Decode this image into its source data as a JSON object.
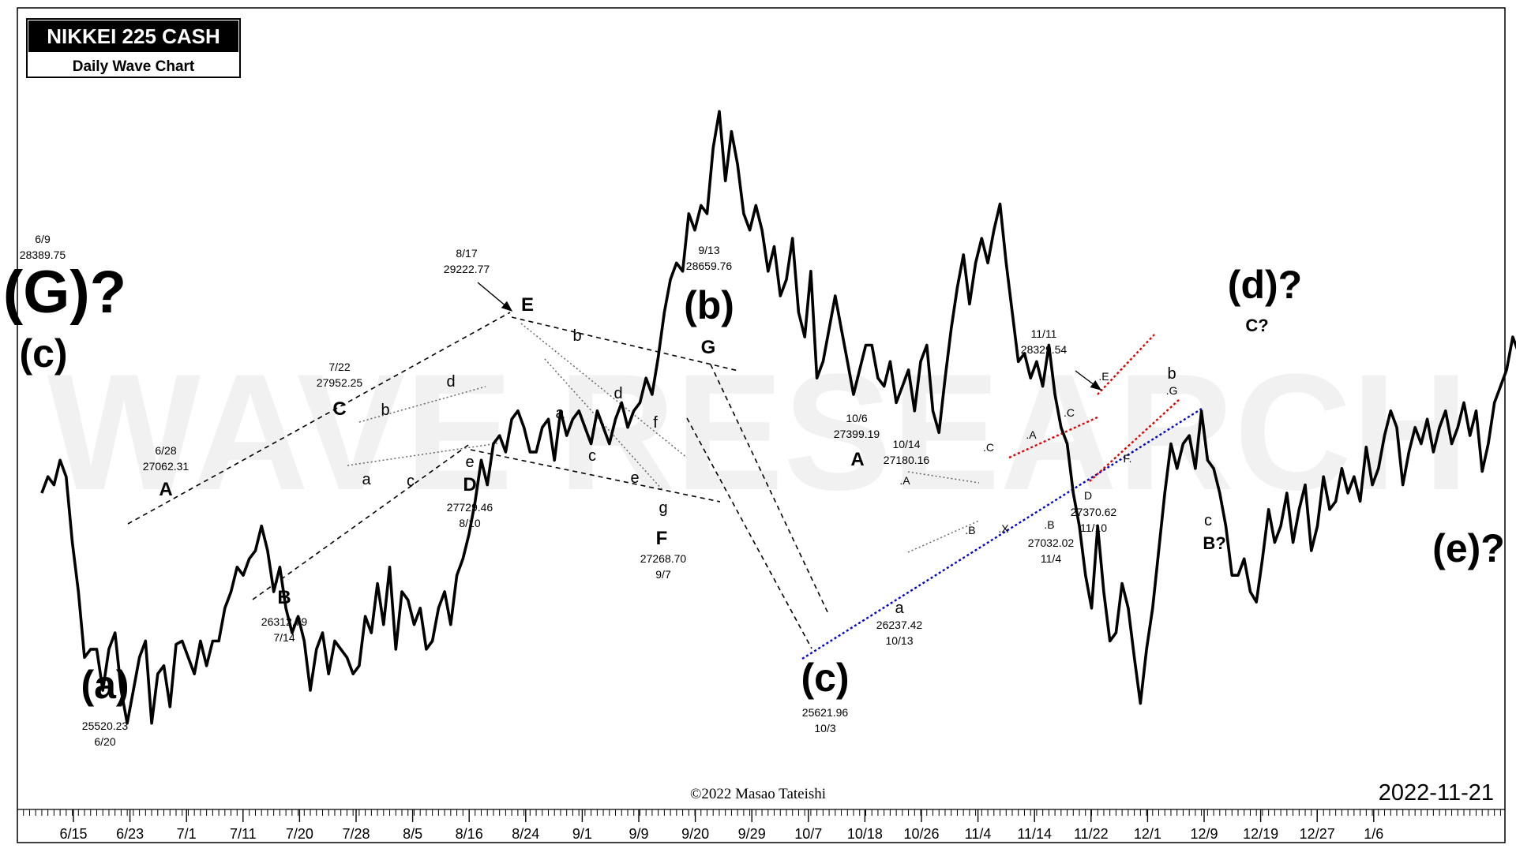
{
  "header": {
    "title": "NIKKEI 225 CASH",
    "subtitle": "Daily Wave Chart"
  },
  "watermark": "WAVE RESEARCH",
  "copyright": "©2022 Masao Tateishi",
  "date_stamp": "2022-11-21",
  "colors": {
    "price": "#000000",
    "trend_black": "#000000",
    "trend_red": "#e00000",
    "trend_blue": "#0000cc",
    "projection": "#7a1f8a",
    "watermark": "#f2f2f2"
  },
  "chart_data": {
    "type": "line",
    "title": "NIKKEI 225 CASH",
    "subtitle": "Daily Wave Chart",
    "x_ticks": [
      "6/15",
      "6/23",
      "7/1",
      "7/11",
      "7/20",
      "7/28",
      "8/5",
      "8/16",
      "8/24",
      "9/1",
      "9/9",
      "9/20",
      "9/29",
      "10/7",
      "10/18",
      "10/26",
      "11/4",
      "11/14",
      "11/22",
      "12/1",
      "12/9",
      "12/19",
      "12/27",
      "1/6"
    ],
    "ylim": [
      25100,
      29900
    ],
    "price_trading_day_index_start": 4,
    "price": [
      26900,
      27000,
      26950,
      27100,
      27000,
      26600,
      26300,
      25900,
      25950,
      25950,
      25700,
      25950,
      26050,
      25700,
      25500,
      25700,
      25900,
      26000,
      25500,
      25800,
      25850,
      25600,
      25980,
      26000,
      25900,
      25800,
      26000,
      25850,
      26000,
      26000,
      26200,
      26300,
      26450,
      26400,
      26500,
      26550,
      26700,
      26550,
      26300,
      26450,
      26200,
      26050,
      26150,
      26000,
      25700,
      25950,
      26050,
      25800,
      26000,
      25950,
      25900,
      25800,
      25850,
      26150,
      26050,
      26350,
      26100,
      26450,
      25950,
      26300,
      26250,
      26100,
      26200,
      25950,
      26000,
      26200,
      26300,
      26100,
      26400,
      26500,
      26650,
      26850,
      27100,
      26950,
      27200,
      27250,
      27150,
      27350,
      27400,
      27300,
      27150,
      27150,
      27300,
      27350,
      27100,
      27400,
      27250,
      27350,
      27400,
      27300,
      27200,
      27400,
      27300,
      27200,
      27350,
      27450,
      27300,
      27400,
      27450,
      27600,
      27500,
      27729,
      28000,
      28200,
      28300,
      28250,
      28600,
      28500,
      28650,
      28600,
      29000,
      29222,
      28800,
      29100,
      28900,
      28600,
      28500,
      28650,
      28500,
      28250,
      28400,
      28100,
      28200,
      28450,
      28000,
      27850,
      28250,
      27600,
      27700,
      27900,
      28100,
      27900,
      27700,
      27500,
      27650,
      27800,
      27800,
      27600,
      27550,
      27700,
      27450,
      27550,
      27650,
      27400,
      27700,
      27800,
      27400,
      27268,
      27600,
      27900,
      28150,
      28350,
      28050,
      28300,
      28450,
      28300,
      28500,
      28659,
      28300,
      28000,
      27700,
      27750,
      27600,
      27700,
      27550,
      27800,
      27500,
      27300,
      27200,
      26900,
      26700,
      26400,
      26200,
      26700,
      26300,
      26000,
      26050,
      26350,
      26200,
      25900,
      25621,
      25950,
      26200,
      26550,
      26900,
      27200,
      27050,
      27200,
      27250,
      27050,
      27399,
      27100,
      27050,
      26900,
      26700,
      26400,
      26400,
      26500,
      26300,
      26237,
      26500,
      26800,
      26600,
      26700,
      26900,
      26600,
      26800,
      26950,
      26550,
      26700,
      27000,
      26800,
      26850,
      27050,
      26900,
      27000,
      26850,
      27180,
      26950,
      27050,
      27250,
      27400,
      27300,
      26950,
      27150,
      27300,
      27200,
      27350,
      27150,
      27300,
      27400,
      27200,
      27300,
      27450,
      27250,
      27400,
      27032,
      27200,
      27450,
      27550,
      27650,
      27850,
      27750,
      27370,
      27500,
      27850,
      28100,
      28329,
      28300,
      28000,
      27900,
      28000,
      27900,
      28050,
      27800,
      27900,
      28000,
      27950,
      28000,
      27900,
      27950,
      27850,
      27800
    ],
    "pivots": [
      {
        "label": "6/9 28389.75",
        "date": "6/9",
        "value": 28389.75
      },
      {
        "label": "(a)",
        "date": "6/20",
        "value": 25520.23
      },
      {
        "label": "A",
        "date": "6/28",
        "value": 27062.31
      },
      {
        "label": "B",
        "date": "7/14",
        "value": 26312.79
      },
      {
        "label": "C",
        "date": "7/22",
        "value": 27952.25
      },
      {
        "label": "D",
        "date": "8/10",
        "value": 27729.46
      },
      {
        "label": "E",
        "date": "8/17",
        "value": 29222.77
      },
      {
        "label": "F",
        "date": "9/7",
        "value": 27268.7
      },
      {
        "label": "G",
        "date": "9/13",
        "value": 28659.76
      },
      {
        "label": "(c)",
        "date": "10/3",
        "value": 25621.96
      },
      {
        "label": "A",
        "date": "10/6",
        "value": 27399.19
      },
      {
        "label": "a",
        "date": "10/13",
        "value": 26237.42
      },
      {
        "label": "10/14",
        "date": "10/14",
        "value": 27180.16
      },
      {
        "label": "B",
        "date": "11/4",
        "value": 27032.02
      },
      {
        "label": "D",
        "date": "11/10",
        "value": 27370.62
      },
      {
        "label": "E",
        "date": "11/11",
        "value": 28329.54
      }
    ],
    "wave_labels": {
      "big": [
        "(G)?",
        "(c)",
        "(a)",
        "(b)",
        "(c)",
        "(d)?",
        "(e)?"
      ],
      "mid": [
        "A",
        "B",
        "C",
        "D",
        "E",
        "F",
        "G",
        "A"
      ],
      "small": [
        "b",
        "d",
        "a",
        "c",
        "e",
        "b",
        "a",
        "c",
        "d",
        "e",
        "f",
        "g",
        "a",
        "c",
        "b",
        "B?",
        "C?"
      ],
      "tiny": [
        ".A",
        ".B",
        ".C",
        ".X",
        ".A",
        ".B",
        ".C",
        "D",
        ".E",
        "F.",
        ".G"
      ]
    },
    "price_notes": [
      {
        "line1": "6/9",
        "line2": "28389.75"
      },
      {
        "line1": "25520.23",
        "line2": "6/20"
      },
      {
        "line1": "6/28",
        "line2": "27062.31"
      },
      {
        "line1": "26312.79",
        "line2": "7/14"
      },
      {
        "line1": "7/22",
        "line2": "27952.25"
      },
      {
        "line1": "27729.46",
        "line2": "8/10"
      },
      {
        "line1": "8/17",
        "line2": "29222.77"
      },
      {
        "line1": "27268.70",
        "line2": "9/7"
      },
      {
        "line1": "9/13",
        "line2": "28659.76"
      },
      {
        "line1": "25621.96",
        "line2": "10/3"
      },
      {
        "line1": "10/6",
        "line2": "27399.19"
      },
      {
        "line1": "26237.42",
        "line2": "10/13"
      },
      {
        "line1": "10/14",
        "line2": "27180.16"
      },
      {
        "line1": "27032.02",
        "line2": "11/4"
      },
      {
        "line1": "27370.62",
        "line2": "11/10"
      },
      {
        "line1": "11/11",
        "line2": "28329.54"
      }
    ],
    "projection": {
      "path_values": [
        28000,
        26100,
        28900,
        26200,
        28700,
        26400
      ],
      "labels": [
        "c",
        "B?",
        "C?",
        "(d)?",
        "(e)?"
      ]
    }
  }
}
